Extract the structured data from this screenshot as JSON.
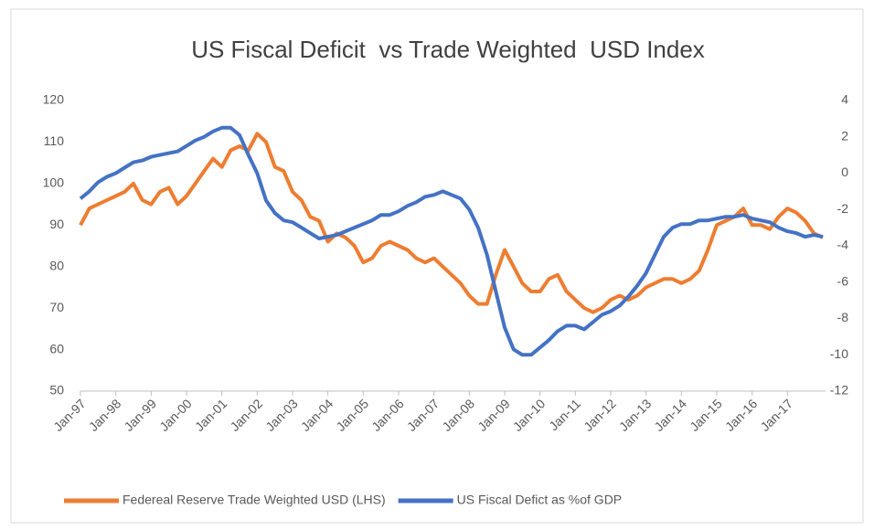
{
  "chart_data": {
    "type": "line",
    "title": "US Fiscal Deficit  vs Trade Weighted  USD Index",
    "categories": [
      "Jan-97",
      null,
      null,
      null,
      "Jan-98",
      null,
      null,
      null,
      "Jan-99",
      null,
      null,
      null,
      "Jan-00",
      null,
      null,
      null,
      "Jan-01",
      null,
      null,
      null,
      "Jan-02",
      null,
      null,
      null,
      "Jan-03",
      null,
      null,
      null,
      "Jan-04",
      null,
      null,
      null,
      "Jan-05",
      null,
      null,
      null,
      "Jan-06",
      null,
      null,
      null,
      "Jan-07",
      null,
      null,
      null,
      "Jan-08",
      null,
      null,
      null,
      "Jan-09",
      null,
      null,
      null,
      "Jan-10",
      null,
      null,
      null,
      "Jan-11",
      null,
      null,
      null,
      "Jan-12",
      null,
      null,
      null,
      "Jan-13",
      null,
      null,
      null,
      "Jan-14",
      null,
      null,
      null,
      "Jan-15",
      null,
      null,
      null,
      "Jan-16",
      null,
      null,
      null,
      "Jan-17",
      null,
      null,
      null,
      null
    ],
    "series": [
      {
        "name": "Federeal Reserve Trade Weighted USD (LHS)",
        "color": "#ed7d31",
        "axis": "y",
        "values": [
          90,
          94,
          95,
          96,
          97,
          98,
          100,
          96,
          95,
          98,
          99,
          95,
          97,
          100,
          103,
          106,
          104,
          108,
          109,
          108,
          112,
          110,
          104,
          103,
          98,
          96,
          92,
          91,
          86,
          88,
          87,
          85,
          81,
          82,
          85,
          86,
          85,
          84,
          82,
          81,
          82,
          80,
          78,
          76,
          73,
          71,
          71,
          78,
          84,
          80,
          76,
          74,
          74,
          77,
          78,
          74,
          72,
          70,
          69,
          70,
          72,
          73,
          72,
          73,
          75,
          76,
          77,
          77,
          76,
          77,
          79,
          84,
          90,
          91,
          92,
          94,
          90,
          90,
          89,
          92,
          94,
          93,
          91,
          88,
          87
        ]
      },
      {
        "name": "US Fiscal Defict as %of GDP",
        "color": "#4472c4",
        "axis": "y2",
        "values": [
          -1.4,
          -1,
          -0.5,
          -0.2,
          0,
          0.3,
          0.6,
          0.7,
          0.9,
          1,
          1.1,
          1.2,
          1.5,
          1.8,
          2,
          2.3,
          2.5,
          2.5,
          2.1,
          1,
          0,
          -1.5,
          -2.2,
          -2.6,
          -2.7,
          -3,
          -3.3,
          -3.6,
          -3.5,
          -3.4,
          -3.2,
          -3,
          -2.8,
          -2.6,
          -2.3,
          -2.3,
          -2.1,
          -1.8,
          -1.6,
          -1.3,
          -1.2,
          -1,
          -1.2,
          -1.4,
          -2,
          -3,
          -4.5,
          -6.5,
          -8.5,
          -9.7,
          -10,
          -10,
          -9.6,
          -9.2,
          -8.7,
          -8.4,
          -8.4,
          -8.6,
          -8.2,
          -7.8,
          -7.6,
          -7.3,
          -6.8,
          -6.2,
          -5.5,
          -4.5,
          -3.5,
          -3,
          -2.8,
          -2.8,
          -2.6,
          -2.6,
          -2.5,
          -2.4,
          -2.4,
          -2.3,
          -2.5,
          -2.6,
          -2.7,
          -3,
          -3.2,
          -3.3,
          -3.5,
          -3.4,
          -3.5
        ]
      }
    ],
    "ylim": [
      50,
      120
    ],
    "yticks": [
      50,
      60,
      70,
      80,
      90,
      100,
      110,
      120
    ],
    "y2lim": [
      -12,
      4
    ],
    "y2ticks": [
      -12,
      -10,
      -8,
      -6,
      -4,
      -2,
      0,
      2,
      4
    ],
    "legend": "bottom"
  }
}
